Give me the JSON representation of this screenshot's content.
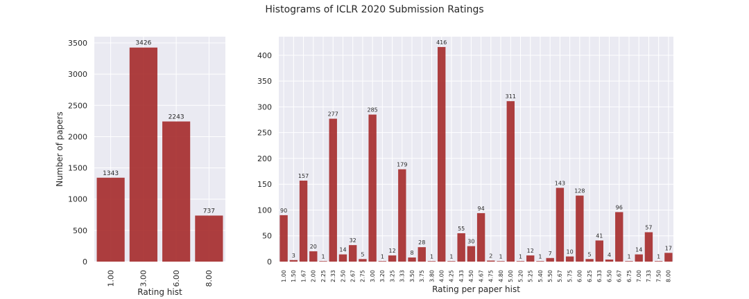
{
  "figure": {
    "title": "Histograms of ICLR 2020 Submission Ratings"
  },
  "colors": {
    "bar": "#a52a2a",
    "axes_bg": "#eaeaf2",
    "grid": "#ffffff",
    "text": "#262626"
  },
  "chart_data": [
    {
      "type": "bar",
      "title": "",
      "xlabel": "Rating hist",
      "ylabel": "Number of papers",
      "categories": [
        "1.00",
        "3.00",
        "6.00",
        "8.00"
      ],
      "values": [
        1343,
        3426,
        2243,
        737
      ],
      "ylim": [
        0,
        3600
      ],
      "yticks": [
        0,
        500,
        1000,
        1500,
        2000,
        2500,
        3000,
        3500
      ],
      "grid": true
    },
    {
      "type": "bar",
      "title": "",
      "xlabel": "Rating per paper hist",
      "ylabel": "",
      "categories": [
        "1.00",
        "1.50",
        "1.67",
        "2.00",
        "2.25",
        "2.33",
        "2.50",
        "2.67",
        "2.75",
        "3.00",
        "3.20",
        "3.25",
        "3.33",
        "3.50",
        "3.75",
        "3.80",
        "4.00",
        "4.25",
        "4.33",
        "4.50",
        "4.67",
        "4.75",
        "4.80",
        "5.00",
        "5.20",
        "5.25",
        "5.40",
        "5.50",
        "5.67",
        "5.75",
        "6.00",
        "6.25",
        "6.33",
        "6.50",
        "6.67",
        "6.75",
        "7.00",
        "7.33",
        "7.50",
        "8.00"
      ],
      "values": [
        90,
        3,
        157,
        20,
        1,
        277,
        14,
        32,
        5,
        285,
        1,
        12,
        179,
        8,
        28,
        1,
        416,
        1,
        55,
        30,
        94,
        2,
        1,
        311,
        1,
        12,
        1,
        7,
        143,
        10,
        128,
        5,
        41,
        4,
        96,
        1,
        14,
        57,
        1,
        17
      ],
      "ylim": [
        0,
        436
      ],
      "yticks": [
        0,
        50,
        100,
        150,
        200,
        250,
        300,
        350,
        400
      ],
      "grid": true
    }
  ]
}
